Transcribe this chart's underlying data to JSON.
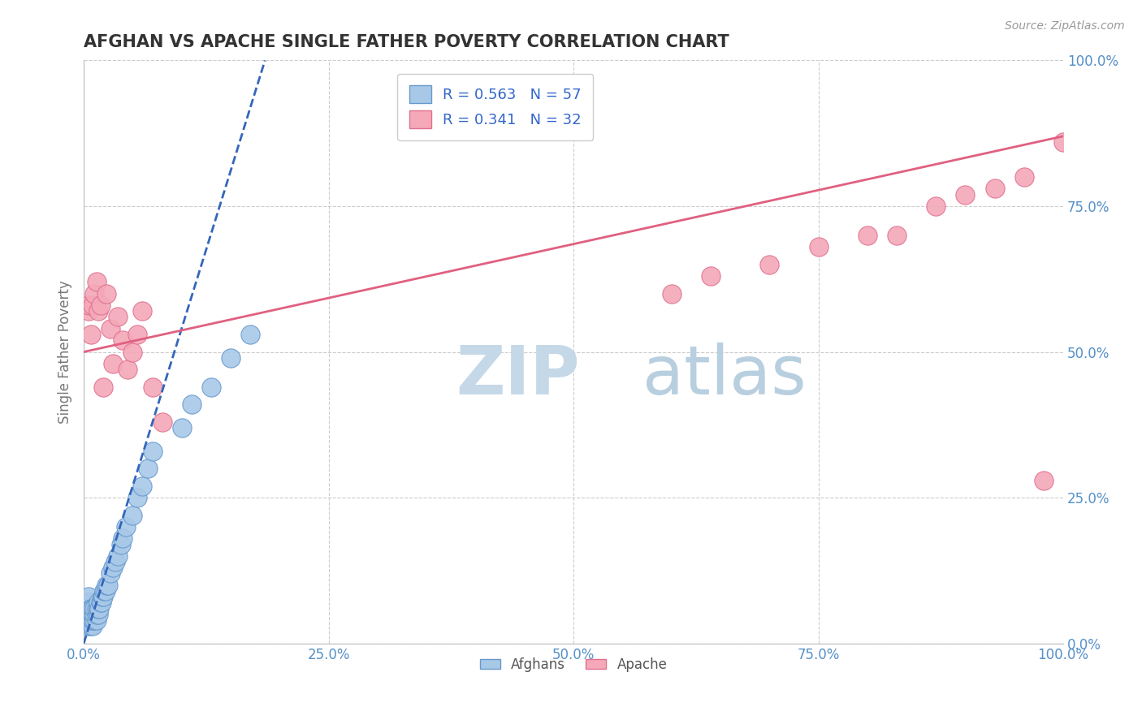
{
  "title": "AFGHAN VS APACHE SINGLE FATHER POVERTY CORRELATION CHART",
  "source": "Source: ZipAtlas.com",
  "ylabel": "Single Father Poverty",
  "xlim": [
    0,
    1
  ],
  "ylim": [
    0,
    1
  ],
  "xticks": [
    0,
    0.25,
    0.5,
    0.75,
    1.0
  ],
  "yticks": [
    0,
    0.25,
    0.5,
    0.75,
    1.0
  ],
  "xticklabels": [
    "0.0%",
    "25.0%",
    "50.0%",
    "75.0%",
    "100.0%"
  ],
  "yticklabels": [
    "0.0%",
    "25.0%",
    "50.0%",
    "75.0%",
    "100.0%"
  ],
  "afghan_color": "#a8c8e8",
  "apache_color": "#f4a8b8",
  "afghan_edge": "#6699cc",
  "apache_edge": "#e07090",
  "afghan_R": 0.563,
  "afghan_N": 57,
  "apache_R": 0.341,
  "apache_N": 32,
  "legend_text_color": "#3366cc",
  "background_color": "#ffffff",
  "grid_color": "#cccccc",
  "title_color": "#333333",
  "tick_color": "#5590c8",
  "afghan_line_color": "#3366bb",
  "apache_line_color": "#e06080",
  "watermark_zip_color": "#c5d8e8",
  "watermark_atlas_color": "#b8cfe0",
  "afghan_scatter_x": [
    0.005,
    0.005,
    0.005,
    0.005,
    0.005,
    0.005,
    0.005,
    0.005,
    0.005,
    0.005,
    0.007,
    0.007,
    0.007,
    0.007,
    0.007,
    0.007,
    0.009,
    0.009,
    0.009,
    0.009,
    0.009,
    0.009,
    0.011,
    0.011,
    0.011,
    0.013,
    0.013,
    0.013,
    0.015,
    0.015,
    0.015,
    0.016,
    0.017,
    0.018,
    0.019,
    0.02,
    0.021,
    0.022,
    0.023,
    0.025,
    0.027,
    0.03,
    0.032,
    0.035,
    0.038,
    0.04,
    0.043,
    0.05,
    0.055,
    0.06,
    0.065,
    0.07,
    0.1,
    0.11,
    0.13,
    0.15,
    0.17
  ],
  "afghan_scatter_y": [
    0.03,
    0.04,
    0.04,
    0.05,
    0.05,
    0.06,
    0.06,
    0.07,
    0.07,
    0.08,
    0.03,
    0.04,
    0.04,
    0.05,
    0.06,
    0.06,
    0.03,
    0.04,
    0.04,
    0.05,
    0.05,
    0.06,
    0.04,
    0.05,
    0.06,
    0.04,
    0.05,
    0.06,
    0.05,
    0.06,
    0.07,
    0.06,
    0.07,
    0.07,
    0.08,
    0.08,
    0.09,
    0.09,
    0.1,
    0.1,
    0.12,
    0.13,
    0.14,
    0.15,
    0.17,
    0.18,
    0.2,
    0.22,
    0.25,
    0.27,
    0.3,
    0.33,
    0.37,
    0.41,
    0.44,
    0.49,
    0.53
  ],
  "apache_scatter_x": [
    0.005,
    0.005,
    0.007,
    0.009,
    0.011,
    0.013,
    0.015,
    0.017,
    0.02,
    0.023,
    0.027,
    0.03,
    0.035,
    0.04,
    0.045,
    0.05,
    0.055,
    0.06,
    0.07,
    0.08,
    0.6,
    0.64,
    0.7,
    0.75,
    0.8,
    0.83,
    0.87,
    0.9,
    0.93,
    0.96,
    0.98,
    1.0
  ],
  "apache_scatter_y": [
    0.57,
    0.58,
    0.53,
    0.58,
    0.6,
    0.62,
    0.57,
    0.58,
    0.44,
    0.6,
    0.54,
    0.48,
    0.56,
    0.52,
    0.47,
    0.5,
    0.53,
    0.57,
    0.44,
    0.38,
    0.6,
    0.63,
    0.65,
    0.68,
    0.7,
    0.7,
    0.75,
    0.77,
    0.78,
    0.8,
    0.28,
    0.86
  ],
  "afghan_line_x1": 0.0,
  "afghan_line_y1": 0.0,
  "afghan_line_x2": 0.185,
  "afghan_line_y2": 1.0,
  "apache_line_x1": 0.0,
  "apache_line_y1": 0.5,
  "apache_line_x2": 1.0,
  "apache_line_y2": 0.87
}
